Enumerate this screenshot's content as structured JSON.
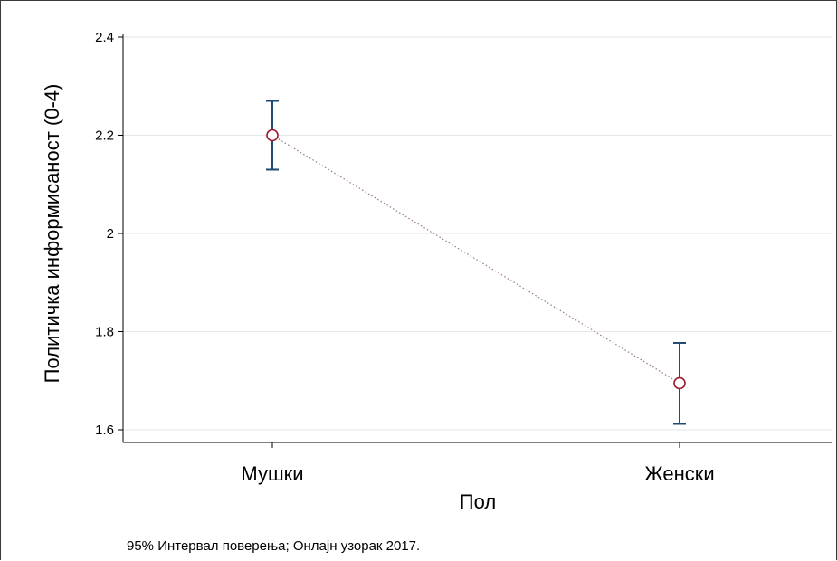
{
  "chart_data": {
    "type": "scatter",
    "categories": [
      "Мушки",
      "Женски"
    ],
    "series": [
      {
        "values": [
          2.2,
          1.695
        ],
        "ci_lower": [
          2.13,
          1.612
        ],
        "ci_upper": [
          2.27,
          1.777
        ]
      }
    ],
    "xlabel": "Пол",
    "ylabel": "Политичка информисаност (0-4)",
    "ylim": [
      1.6,
      2.4
    ],
    "yticks": [
      "1.6",
      "1.8",
      "2",
      "2.2",
      "2.4"
    ],
    "grid": true,
    "connector_line": "dotted",
    "note": "95% Интервал поверења; Онлајн узорак 2017.",
    "colors": {
      "marker": "#9a1b2a",
      "errorbar": "#1f4a72",
      "connector": "#9c7b7b",
      "grid": "#e6e6e6",
      "axis": "#000000"
    }
  }
}
